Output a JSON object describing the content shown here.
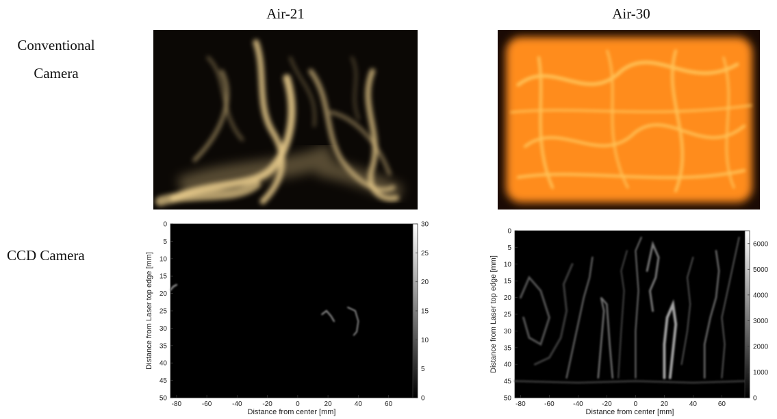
{
  "headers": {
    "col1": "Air-21",
    "col2": "Air-30",
    "row1_line1": "Conventional",
    "row1_line2": "Camera",
    "row2": "CCD Camera"
  },
  "colors": {
    "photo_left_background": "#0b0805",
    "photo_left_flame": "#e6c98a",
    "photo_right_background": "#1a0a04",
    "photo_right_flame": "#ff8c1a",
    "photo_right_hot": "#ffd066"
  },
  "chart_data": [
    {
      "type": "heatmap",
      "title": "",
      "xlabel": "Distance from center [mm]",
      "ylabel": "Distance from Laser top edge [mm]",
      "xlim": [
        -84,
        76
      ],
      "ylim": [
        50,
        0
      ],
      "xticks": [
        -80,
        -60,
        -40,
        -20,
        0,
        20,
        40,
        60
      ],
      "yticks": [
        0,
        5,
        10,
        15,
        20,
        25,
        30,
        35,
        40,
        45,
        50
      ],
      "colorbar": {
        "min": 0,
        "max": 30,
        "ticks": [
          0,
          5,
          10,
          15,
          20,
          25,
          30
        ],
        "colormap": "gray"
      },
      "grid": false
    },
    {
      "type": "heatmap",
      "title": "",
      "xlabel": "Distance from center [mm]",
      "ylabel": "Distance from Laser top edge [mm]",
      "xlim": [
        -84,
        76
      ],
      "ylim": [
        50,
        0
      ],
      "xticks": [
        -80,
        -60,
        -40,
        -20,
        0,
        20,
        40,
        60
      ],
      "yticks": [
        0,
        5,
        10,
        15,
        20,
        25,
        30,
        35,
        40,
        45,
        50
      ],
      "colorbar": {
        "min": 0,
        "max": 6500,
        "ticks": [
          0,
          1000,
          2000,
          3000,
          4000,
          5000,
          6000
        ],
        "colormap": "gray"
      },
      "grid": false
    }
  ]
}
